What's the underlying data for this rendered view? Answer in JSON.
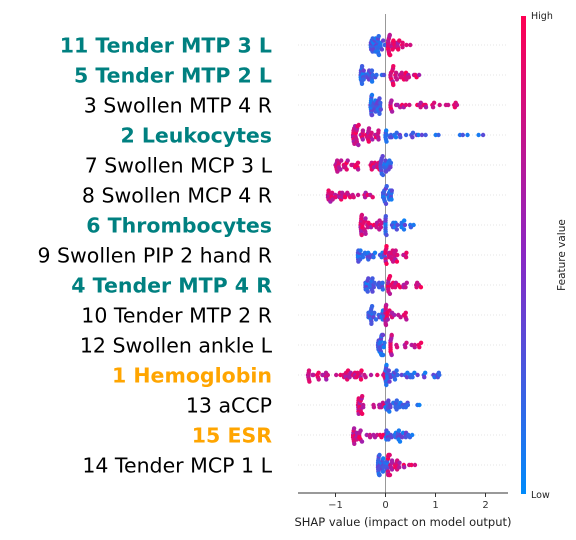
{
  "chart_data": {
    "type": "scatter",
    "subtype": "shap-beeswarm",
    "xlabel": "SHAP value (impact on model output)",
    "xlim": [
      -1.75,
      2.45
    ],
    "xticks": [
      -1,
      0,
      1,
      2
    ],
    "colorbar": {
      "label": "Feature value",
      "high_label": "High",
      "low_label": "Low",
      "low_color": "#008bfb",
      "mid_color": "#8a27c4",
      "high_color": "#ff0052"
    },
    "label_colors": {
      "default": "#000000",
      "teal": "#008080",
      "orange": "#ffa500"
    },
    "features": [
      {
        "label": "11 Tender MTP 3 L",
        "style": "teal",
        "blue": [
          -0.3,
          0.0
        ],
        "red": [
          0.05,
          0.5
        ],
        "blue_w": 0.5,
        "n": 60
      },
      {
        "label": "5 Tender MTP 2 L",
        "style": "teal",
        "blue": [
          -0.5,
          0.0
        ],
        "red": [
          0.1,
          0.7
        ],
        "blue_w": 0.5,
        "n": 60
      },
      {
        "label": "3 Swollen MTP 4 R",
        "style": "default",
        "blue": [
          -0.3,
          0.0
        ],
        "red": [
          0.1,
          1.45
        ],
        "blue_w": 0.5,
        "n": 60
      },
      {
        "label": "2 Leukocytes",
        "style": "teal",
        "blue": [
          0.0,
          2.3
        ],
        "red": [
          -0.65,
          -0.1
        ],
        "blue_w": 0.4,
        "n": 75
      },
      {
        "label": "7 Swollen MCP 3 L",
        "style": "default",
        "blue": [
          -0.1,
          0.15
        ],
        "red": [
          -1.0,
          -0.1
        ],
        "blue_w": 0.4,
        "n": 60
      },
      {
        "label": "8 Swollen MCP 4 R",
        "style": "default",
        "blue": [
          -0.05,
          0.15
        ],
        "red": [
          -1.15,
          -0.2
        ],
        "blue_w": 0.4,
        "n": 55
      },
      {
        "label": "6 Thrombocytes",
        "style": "teal",
        "blue": [
          0.0,
          0.7
        ],
        "red": [
          -0.5,
          -0.05
        ],
        "blue_w": 0.45,
        "n": 60
      },
      {
        "label": "9 Swollen PIP 2 hand R",
        "style": "default",
        "blue": [
          -0.55,
          0.0
        ],
        "red": [
          0.0,
          0.45
        ],
        "blue_w": 0.5,
        "n": 55
      },
      {
        "label": "4 Tender MTP 4 R",
        "style": "teal",
        "blue": [
          -0.4,
          0.0
        ],
        "red": [
          0.05,
          0.75
        ],
        "blue_w": 0.5,
        "n": 55
      },
      {
        "label": "10 Tender MTP 2 R",
        "style": "default",
        "blue": [
          -0.35,
          0.0
        ],
        "red": [
          0.0,
          0.45
        ],
        "blue_w": 0.5,
        "n": 50
      },
      {
        "label": "12 Swollen ankle L",
        "style": "default",
        "blue": [
          -0.15,
          0.0
        ],
        "red": [
          0.1,
          0.8
        ],
        "blue_w": 0.5,
        "n": 45
      },
      {
        "label": "1 Hemoglobin",
        "style": "orange",
        "blue": [
          0.0,
          1.1
        ],
        "red": [
          -1.55,
          0.0
        ],
        "blue_w": 0.45,
        "n": 90
      },
      {
        "label": "13 aCCP",
        "style": "default",
        "blue": [
          0.0,
          0.7
        ],
        "red": [
          -0.55,
          0.0
        ],
        "blue_w": 0.5,
        "n": 55
      },
      {
        "label": "15 ESR",
        "style": "orange",
        "blue": [
          0.0,
          0.6
        ],
        "red": [
          -0.65,
          0.0
        ],
        "blue_w": 0.5,
        "n": 55
      },
      {
        "label": "14 Tender MCP 1 L",
        "style": "default",
        "blue": [
          -0.15,
          0.05
        ],
        "red": [
          0.05,
          0.65
        ],
        "blue_w": 0.5,
        "n": 55
      }
    ]
  }
}
